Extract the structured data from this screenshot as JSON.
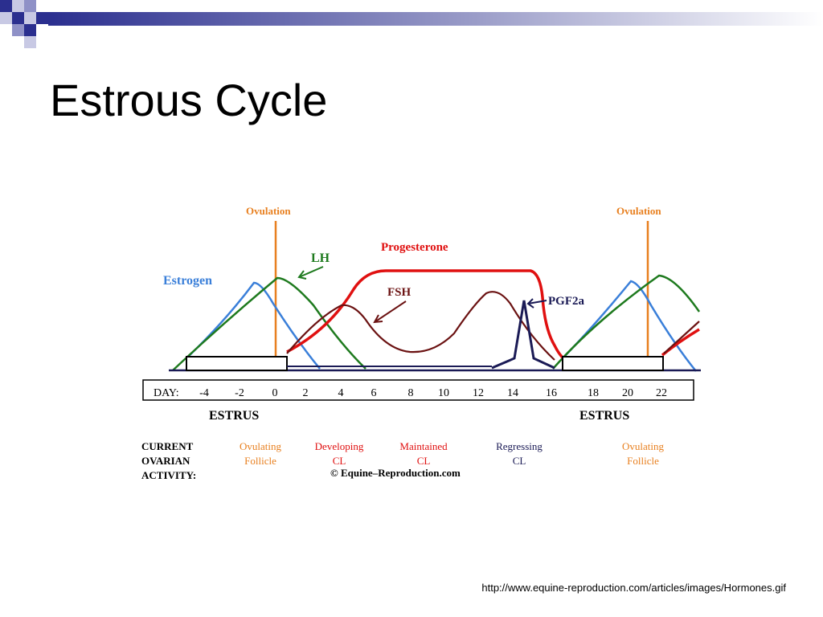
{
  "slide": {
    "title": "Estrous Cycle",
    "source_url": "http://www.equine-reproduction.com/articles/images/Hormones.gif"
  },
  "colors": {
    "estrogen": "#3a7fd9",
    "lh": "#1e7a1e",
    "progesterone": "#e01010",
    "fsh": "#6b1212",
    "pgf2a": "#1a1a55",
    "ovulation": "#e88020",
    "activity_red": "#e01010",
    "regressing": "#1a1a55",
    "ovulating": "#e88020"
  },
  "diagram": {
    "ovulation_left": "Ovulation",
    "ovulation_right": "Ovulation",
    "labels": {
      "estrogen": "Estrogen",
      "lh": "LH",
      "progesterone": "Progesterone",
      "fsh": "FSH",
      "pgf2a": "PGF2a"
    },
    "day_label": "DAY:",
    "days": [
      "-4",
      "-2",
      "0",
      "2",
      "4",
      "6",
      "8",
      "10",
      "12",
      "14",
      "16",
      "18",
      "20",
      "22"
    ],
    "estrus_left": "ESTRUS",
    "estrus_right": "ESTRUS",
    "activity_heading": [
      "CURRENT",
      "OVARIAN",
      "ACTIVITY:"
    ],
    "activity": [
      {
        "line1": "Ovulating",
        "line2": "Follicle"
      },
      {
        "line1": "Developing",
        "line2": "CL"
      },
      {
        "line1": "Maintained",
        "line2": "CL"
      },
      {
        "line1": "Regressing",
        "line2": "CL"
      },
      {
        "line1": "Ovulating",
        "line2": "Follicle"
      }
    ],
    "copyright": "© Equine–Reproduction.com"
  }
}
